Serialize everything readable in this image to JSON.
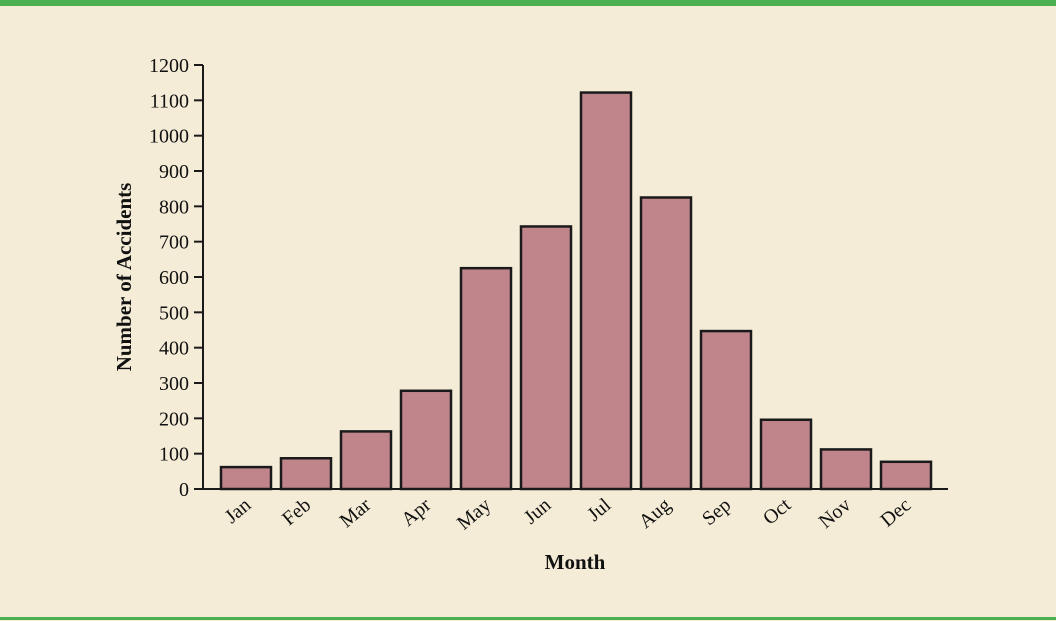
{
  "chart_data": {
    "type": "bar",
    "categories": [
      "Jan",
      "Feb",
      "Mar",
      "Apr",
      "May",
      "Jun",
      "Jul",
      "Aug",
      "Sep",
      "Oct",
      "Nov",
      "Dec"
    ],
    "values": [
      62,
      87,
      163,
      278,
      625,
      743,
      1122,
      825,
      447,
      196,
      112,
      77
    ],
    "xlabel": "Month",
    "ylabel": "Number of Accidents",
    "ylim": [
      0,
      1200
    ],
    "yticks": [
      0,
      100,
      200,
      300,
      400,
      500,
      600,
      700,
      800,
      900,
      1000,
      1100,
      1200
    ],
    "grid": false,
    "legend": "none"
  },
  "colors": {
    "background": "#f4ecd6",
    "bar_fill": "#c0848b",
    "bar_stroke": "#1a1a1a",
    "rule": "#4caf50"
  }
}
